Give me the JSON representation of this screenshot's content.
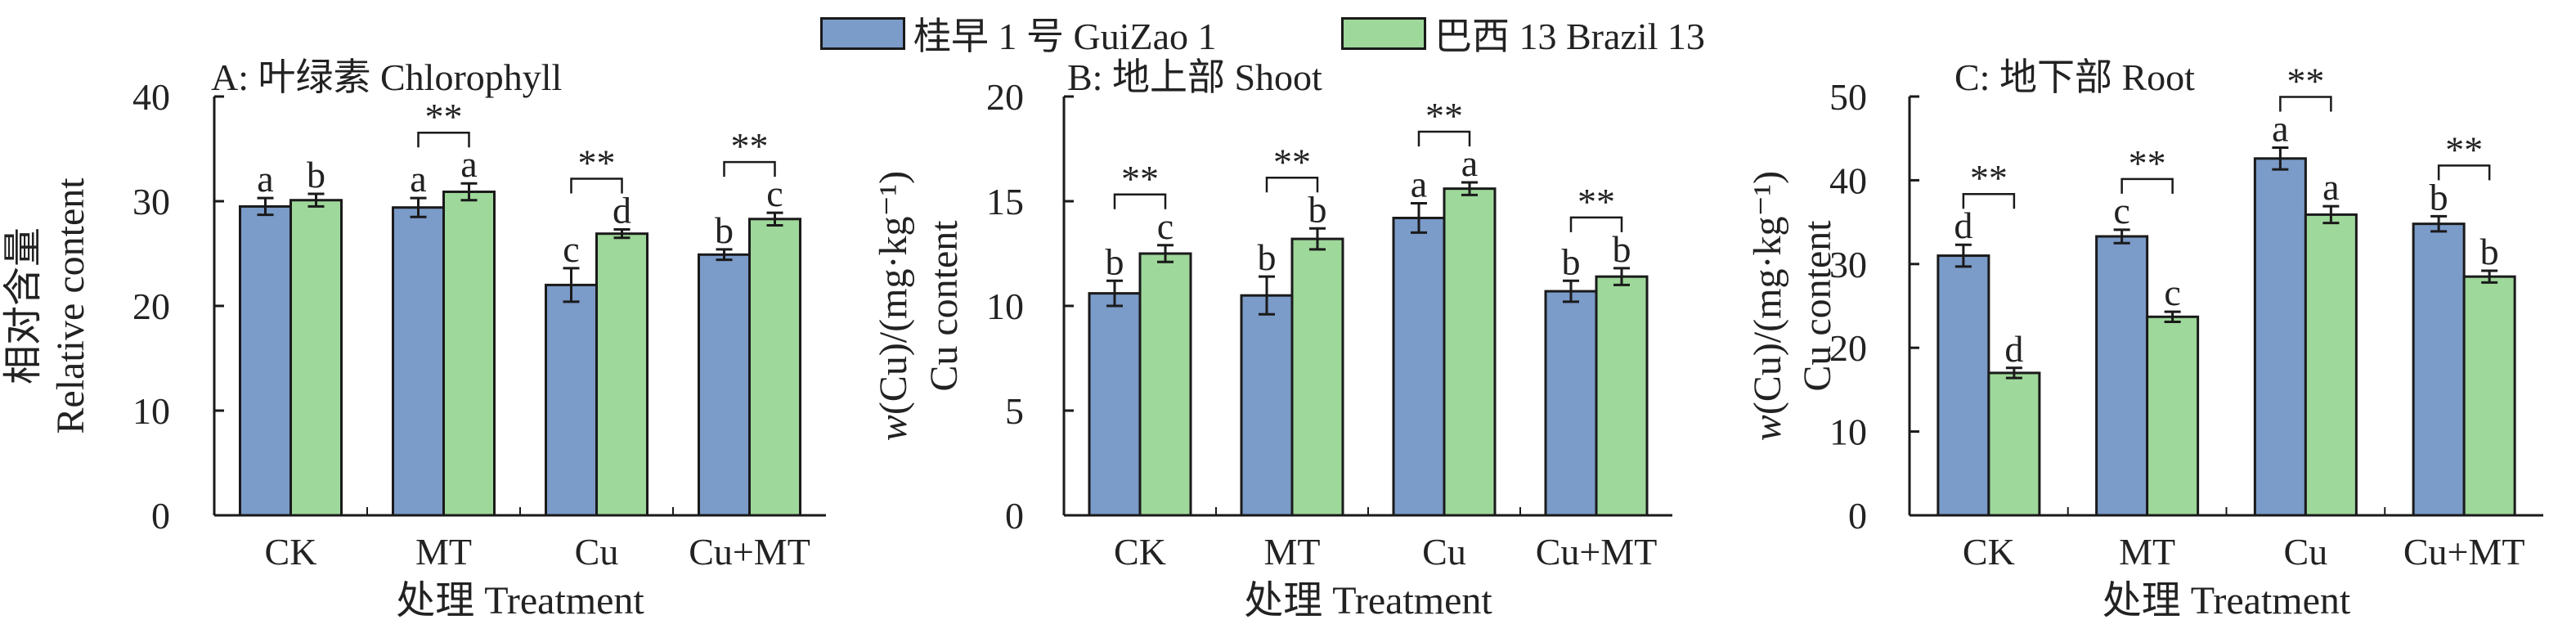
{
  "legend": {
    "series1_label": "桂早 1 号  GuiZao 1",
    "series2_label": "巴西 13 Brazil 13"
  },
  "colors": {
    "series1": "#7b9bc9",
    "series2": "#9ed89a",
    "axis": "#1a1a1a"
  },
  "chart_data": [
    {
      "type": "bar",
      "title": "A: 叶绿素 Chlorophyll",
      "ylabel_lines": [
        "相对含量",
        "Relative content"
      ],
      "xlabel": "处理 Treatment",
      "categories": [
        "CK",
        "MT",
        "Cu",
        "Cu+MT"
      ],
      "ylim": [
        0,
        40
      ],
      "yticks": [
        0,
        10,
        20,
        30,
        40
      ],
      "series": [
        {
          "name": "桂早 1 号  GuiZao 1",
          "values": [
            29.5,
            29.4,
            22.0,
            24.9
          ],
          "errors": [
            0.8,
            0.9,
            1.6,
            0.5
          ],
          "letters": [
            "a",
            "a",
            "c",
            "b"
          ]
        },
        {
          "name": "巴西 13 Brazil 13",
          "values": [
            30.1,
            30.9,
            26.9,
            28.3
          ],
          "errors": [
            0.6,
            0.8,
            0.4,
            0.6
          ],
          "letters": [
            "b",
            "a",
            "d",
            "c"
          ]
        }
      ],
      "significance": [
        "",
        "**",
        "**",
        "**"
      ]
    },
    {
      "type": "bar",
      "title": "B: 地上部 Shoot",
      "ylabel_lines": [
        "w(Cu)/(mg·kg⁻¹)",
        "Cu content"
      ],
      "xlabel": "处理 Treatment",
      "categories": [
        "CK",
        "MT",
        "Cu",
        "Cu+MT"
      ],
      "ylim": [
        0,
        20
      ],
      "yticks": [
        0,
        5,
        10,
        15,
        20
      ],
      "series": [
        {
          "name": "桂早 1 号  GuiZao 1",
          "values": [
            10.6,
            10.5,
            14.2,
            10.7
          ],
          "errors": [
            0.6,
            0.9,
            0.7,
            0.5
          ],
          "letters": [
            "b",
            "b",
            "a",
            "b"
          ]
        },
        {
          "name": "巴西 13 Brazil 13",
          "values": [
            12.5,
            13.2,
            15.6,
            11.4
          ],
          "errors": [
            0.4,
            0.5,
            0.3,
            0.4
          ],
          "letters": [
            "c",
            "b",
            "a",
            "b"
          ]
        }
      ],
      "significance": [
        "**",
        "**",
        "**",
        "**"
      ]
    },
    {
      "type": "bar",
      "title": "C: 地下部 Root",
      "ylabel_lines": [
        "w(Cu)/(mg·kg⁻¹)",
        "Cu content"
      ],
      "xlabel": "处理 Treatment",
      "categories": [
        "CK",
        "MT",
        "Cu",
        "Cu+MT"
      ],
      "ylim": [
        0,
        50
      ],
      "yticks": [
        0,
        10,
        20,
        30,
        40,
        50
      ],
      "series": [
        {
          "name": "桂早 1 号  GuiZao 1",
          "values": [
            31.0,
            33.3,
            42.6,
            34.8
          ],
          "errors": [
            1.3,
            0.8,
            1.3,
            0.9
          ],
          "letters": [
            "d",
            "c",
            "a",
            "b"
          ]
        },
        {
          "name": "巴西 13 Brazil 13",
          "values": [
            17.0,
            23.7,
            35.9,
            28.5
          ],
          "errors": [
            0.6,
            0.6,
            1.0,
            0.7
          ],
          "letters": [
            "d",
            "c",
            "a",
            "b"
          ]
        }
      ],
      "significance": [
        "**",
        "**",
        "**",
        "**"
      ]
    }
  ]
}
